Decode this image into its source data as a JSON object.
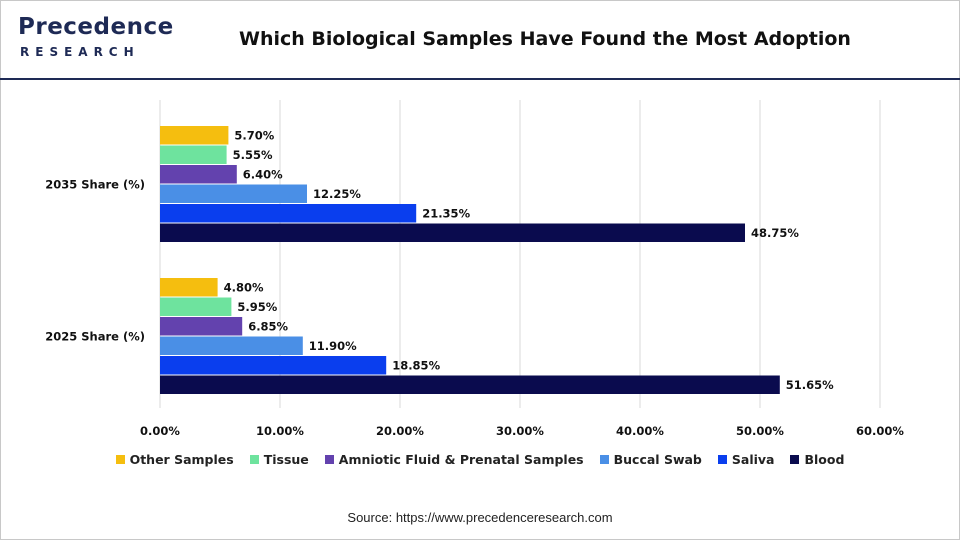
{
  "header": {
    "logo_main": "Precedence",
    "logo_sub": "RESEARCH",
    "title": "Which Biological Samples Have Found the Most Adoption"
  },
  "source": "Source: https://www.precedenceresearch.com",
  "chart_data": {
    "type": "bar",
    "orientation": "horizontal",
    "title": "Which Biological Samples Have Found the Most Adoption",
    "categories": [
      "2035 Share (%)",
      "2025 Share (%)"
    ],
    "series": [
      {
        "name": "Other Samples",
        "color": "#F5BE0F",
        "values": [
          5.7,
          4.8
        ],
        "labels": [
          "5.70%",
          "4.80%"
        ]
      },
      {
        "name": "Tissue",
        "color": "#6EE39E",
        "values": [
          5.55,
          5.95
        ],
        "labels": [
          "5.55%",
          "5.95%"
        ]
      },
      {
        "name": "Amniotic Fluid & Prenatal Samples",
        "color": "#6342AE",
        "values": [
          6.4,
          6.85
        ],
        "labels": [
          "6.40%",
          "6.85%"
        ]
      },
      {
        "name": "Buccal Swab",
        "color": "#4A8FE6",
        "values": [
          12.25,
          11.9
        ],
        "labels": [
          "12.25%",
          "11.90%"
        ]
      },
      {
        "name": "Saliva",
        "color": "#0A3EEE",
        "values": [
          21.35,
          18.85
        ],
        "labels": [
          "21.35%",
          "18.85%"
        ]
      },
      {
        "name": "Blood",
        "color": "#0A0B4E",
        "values": [
          48.75,
          51.65
        ],
        "labels": [
          "48.75%",
          "51.65%"
        ]
      }
    ],
    "xlim": [
      0,
      60
    ],
    "xticks": [
      0,
      10,
      20,
      30,
      40,
      50,
      60
    ],
    "xtick_labels": [
      "0.00%",
      "10.00%",
      "20.00%",
      "30.00%",
      "40.00%",
      "50.00%",
      "60.00%"
    ],
    "grid": "vertical",
    "legend_position": "bottom"
  }
}
